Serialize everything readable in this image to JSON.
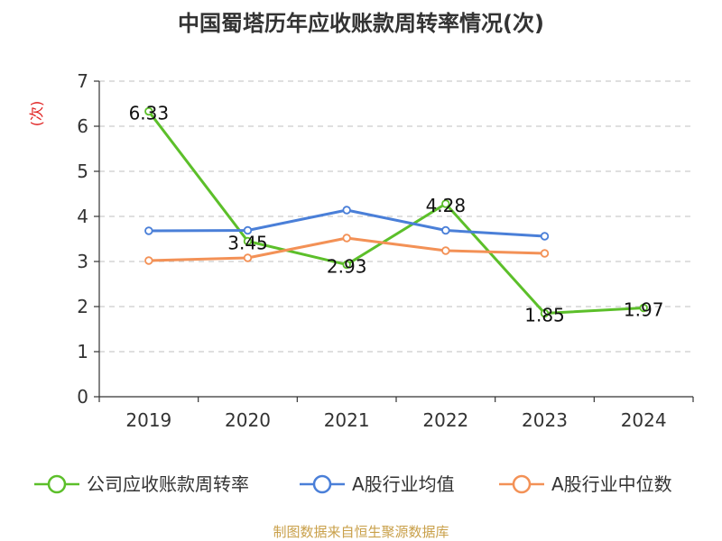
{
  "chart_data": {
    "type": "line",
    "title": "中国蜀塔历年应收账款周转率情况(次)",
    "y_unit_label": "(次)",
    "categories": [
      "2019",
      "2020",
      "2021",
      "2022",
      "2023",
      "2024"
    ],
    "ylim": [
      0,
      7
    ],
    "yticks": [
      0,
      1,
      2,
      3,
      4,
      5,
      6,
      7
    ],
    "grid": true,
    "legend_position": "bottom",
    "series": [
      {
        "name": "公司应收账款周转率",
        "color": "#5cbf2a",
        "values": [
          6.33,
          3.45,
          2.93,
          4.28,
          1.85,
          1.97
        ],
        "labels": [
          "6.33",
          "3.45",
          "2.93",
          "4.28",
          "1.85",
          "1.97"
        ]
      },
      {
        "name": "A股行业均值",
        "color": "#4a7fd8",
        "values": [
          3.68,
          3.69,
          4.14,
          3.69,
          3.56,
          null
        ]
      },
      {
        "name": "A股行业中位数",
        "color": "#f39156",
        "values": [
          3.02,
          3.08,
          3.52,
          3.24,
          3.18,
          null
        ]
      }
    ],
    "source": "制图数据来自恒生聚源数据库"
  }
}
